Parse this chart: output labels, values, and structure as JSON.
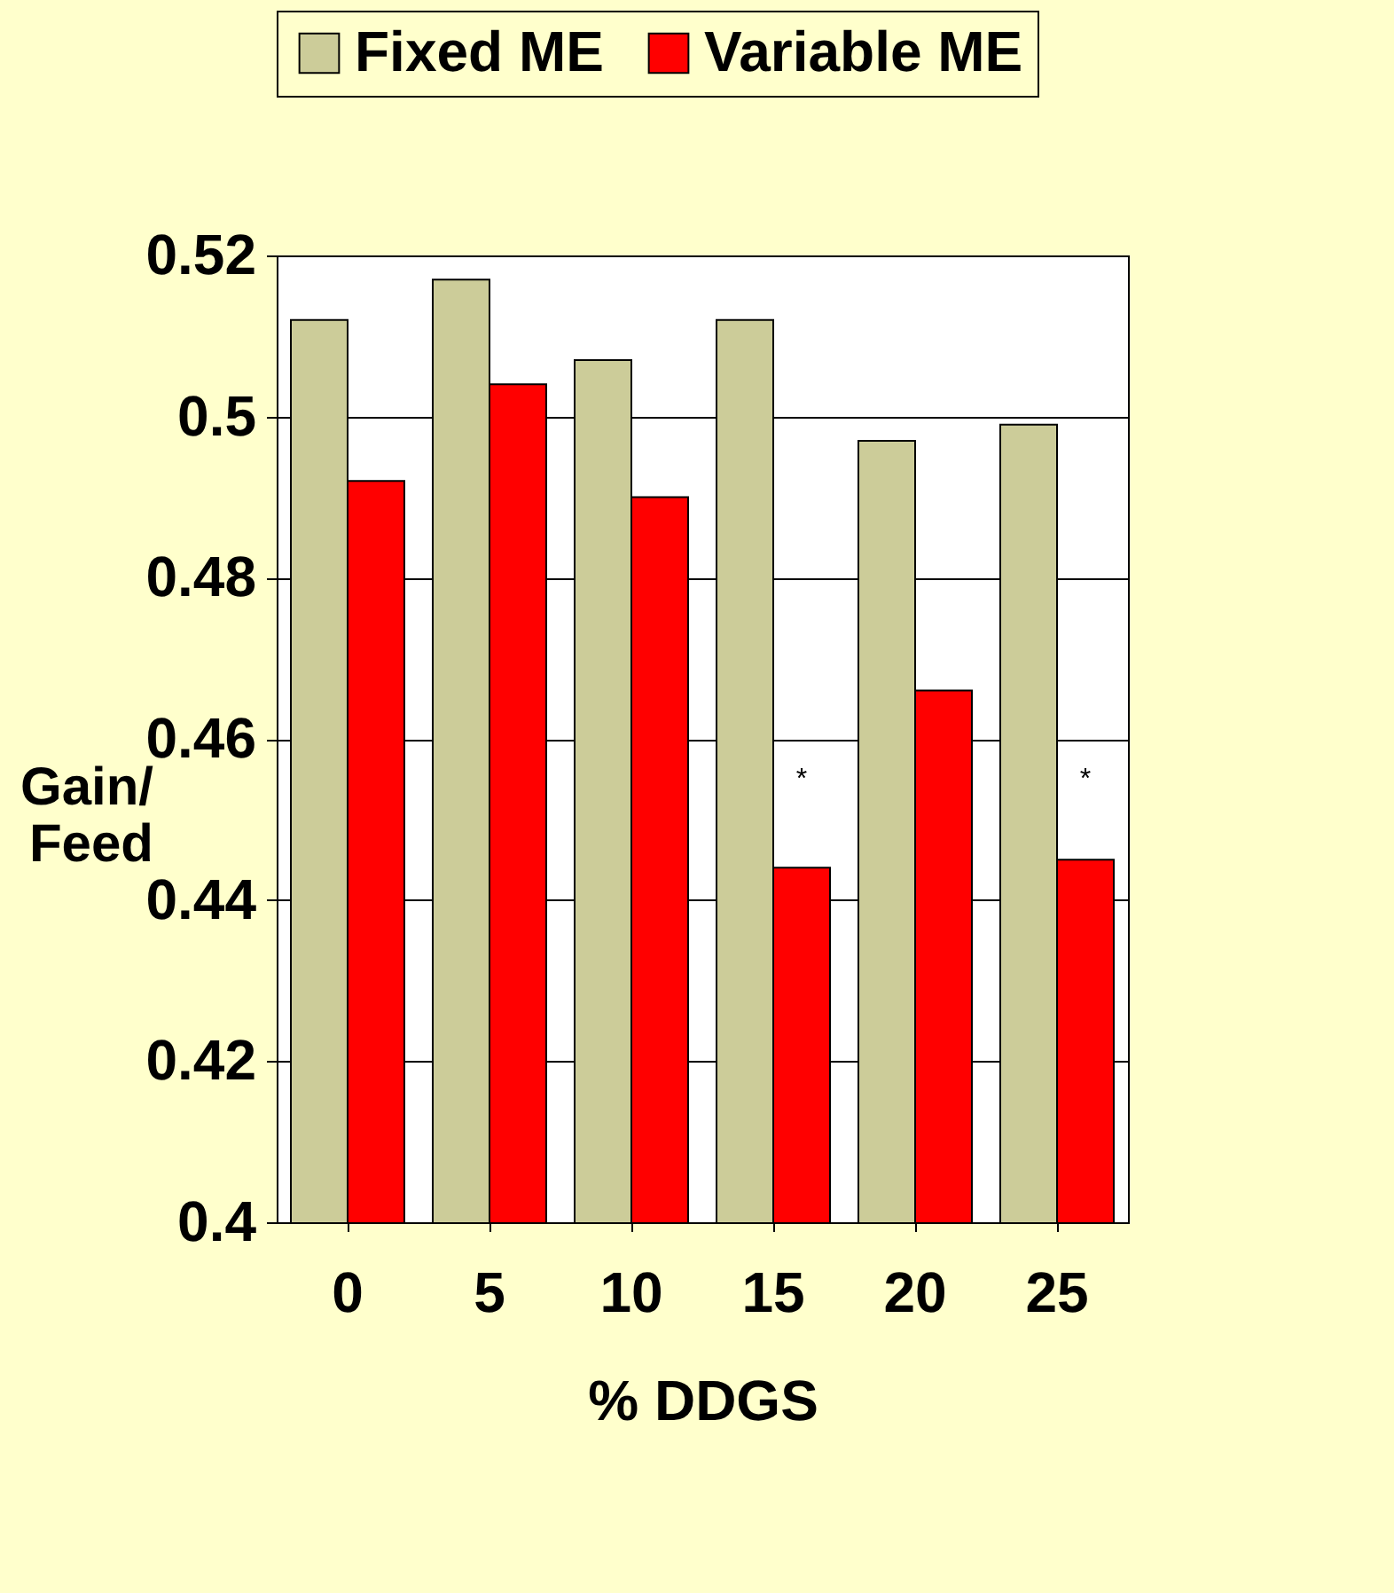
{
  "chart_data": {
    "type": "bar",
    "xlabel": "% DDGS",
    "ylabel": "Gain/\nFeed",
    "categories": [
      "0",
      "5",
      "10",
      "15",
      "20",
      "25"
    ],
    "series": [
      {
        "name": "Fixed ME",
        "color": "#cccc99",
        "values": [
          0.512,
          0.517,
          0.507,
          0.512,
          0.497,
          0.499
        ]
      },
      {
        "name": "Variable ME",
        "color": "#ff0000",
        "values": [
          0.492,
          0.504,
          0.49,
          0.444,
          0.466,
          0.445
        ]
      }
    ],
    "annotations": [
      {
        "text": "*",
        "x": "15",
        "y": 0.455
      },
      {
        "text": "*",
        "x": "25",
        "y": 0.455
      }
    ],
    "ylim": [
      0.4,
      0.52
    ],
    "yticks": [
      0.4,
      0.42,
      0.44,
      0.46,
      0.48,
      0.5,
      0.52
    ],
    "grid": "y",
    "legend": "top"
  }
}
